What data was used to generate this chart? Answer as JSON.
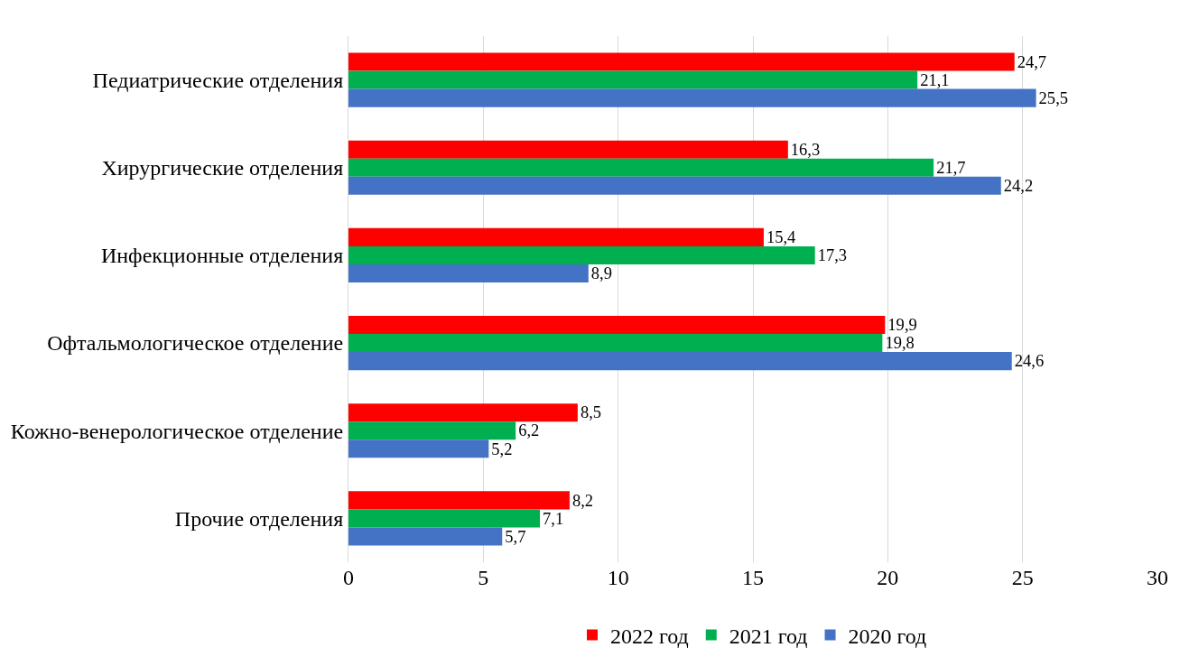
{
  "chart_data": {
    "type": "bar",
    "orientation": "horizontal",
    "categories": [
      "Педиатрические отделения",
      "Хирургические отделения",
      "Инфекционные отделения",
      "Офтальмологическое отделение",
      "Кожно-венерологическое отделение",
      "Прочие отделения"
    ],
    "series": [
      {
        "name": "2022 год",
        "color": "#ff0000",
        "values": [
          24.7,
          16.3,
          15.4,
          19.9,
          8.5,
          8.2
        ],
        "value_labels": [
          "24,7",
          "16,3",
          "15,4",
          "19,9",
          "8,5",
          "8,2"
        ]
      },
      {
        "name": "2021 год",
        "color": "#00b050",
        "values": [
          21.1,
          21.7,
          17.3,
          19.8,
          6.2,
          7.1
        ],
        "value_labels": [
          "21,1",
          "21,7",
          "17,3",
          "19,8",
          "6,2",
          "7,1"
        ]
      },
      {
        "name": "2020 год",
        "color": "#4472c4",
        "values": [
          25.5,
          24.2,
          8.9,
          24.6,
          5.2,
          5.7
        ],
        "value_labels": [
          "25,5",
          "24,2",
          "8,9",
          "24,6",
          "5,2",
          "5,7"
        ]
      }
    ],
    "xlim": [
      0,
      30
    ],
    "xticks": [
      0,
      5,
      10,
      15,
      20,
      25,
      30
    ],
    "grid": "x",
    "legend": "bottom"
  }
}
